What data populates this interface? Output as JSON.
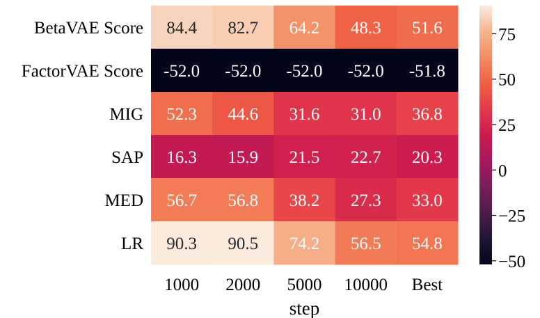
{
  "chart_data": {
    "type": "heatmap",
    "xlabel": "step",
    "ylabel": "",
    "x_categories": [
      "1000",
      "2000",
      "5000",
      "10000",
      "Best"
    ],
    "y_categories": [
      "BetaVAE Score",
      "FactorVAE Score",
      "MIG",
      "SAP",
      "MED",
      "LR"
    ],
    "values": [
      [
        84.4,
        82.7,
        64.2,
        48.3,
        51.6
      ],
      [
        -52.0,
        -52.0,
        -52.0,
        -52.0,
        -51.8
      ],
      [
        52.3,
        44.6,
        31.6,
        31.0,
        36.8
      ],
      [
        16.3,
        15.9,
        21.5,
        22.7,
        20.3
      ],
      [
        56.7,
        56.8,
        38.2,
        27.3,
        33.0
      ],
      [
        90.3,
        90.5,
        74.2,
        56.5,
        54.8
      ]
    ],
    "value_labels": [
      [
        "84.4",
        "82.7",
        "64.2",
        "48.3",
        "51.6"
      ],
      [
        "-52.0",
        "-52.0",
        "-52.0",
        "-52.0",
        "-51.8"
      ],
      [
        "52.3",
        "44.6",
        "31.6",
        "31.0",
        "36.8"
      ],
      [
        "16.3",
        "15.9",
        "21.5",
        "22.7",
        "20.3"
      ],
      [
        "56.7",
        "56.8",
        "38.2",
        "27.3",
        "33.0"
      ],
      [
        "90.3",
        "90.5",
        "74.2",
        "56.5",
        "54.8"
      ]
    ],
    "colorbar": {
      "range": [
        -52.0,
        90.5
      ],
      "ticks": [
        -50,
        -25,
        0,
        25,
        50,
        75
      ],
      "tick_labels": [
        "−50",
        "−25",
        "0",
        "25",
        "50",
        "75"
      ],
      "colormap": "rocket",
      "colormap_stops": [
        "#03051a",
        "#1f1536",
        "#4c1d4b",
        "#7a1d5a",
        "#a8185c",
        "#cb1b4f",
        "#e4394b",
        "#f06043",
        "#f48c63",
        "#f6b48e",
        "#faebdd"
      ]
    }
  }
}
